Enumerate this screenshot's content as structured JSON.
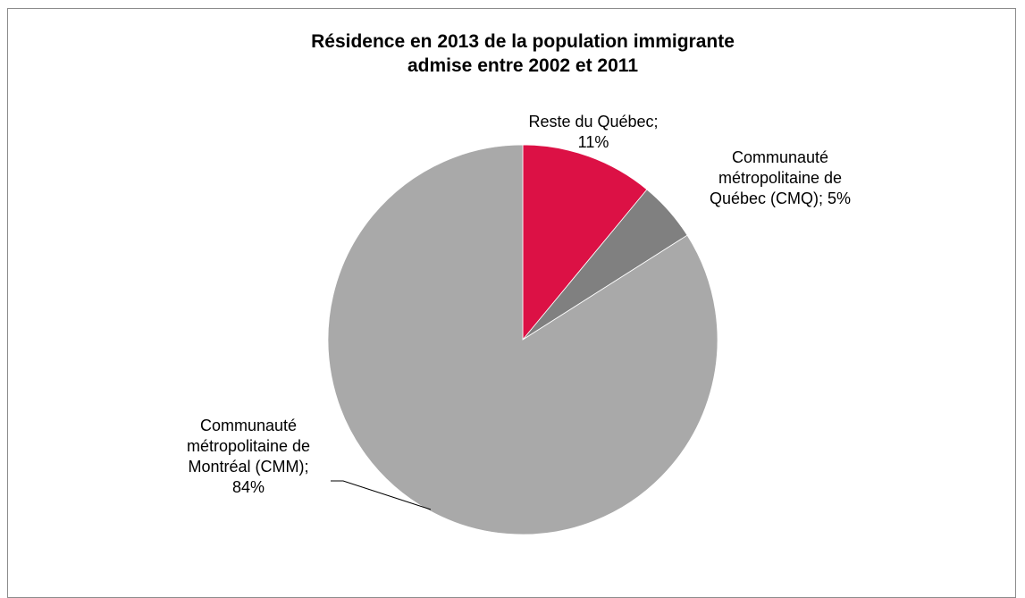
{
  "chart_data": {
    "type": "pie",
    "title": [
      "Résidence en 2013 de la population immigrante",
      "admise entre 2002 et 2011"
    ],
    "slices": [
      {
        "name": "Reste du Québec",
        "value": 11,
        "label_lines": [
          "Reste du Québec;",
          "11%"
        ],
        "color": "#dc1145"
      },
      {
        "name": "Communauté métropolitaine de Québec (CMQ)",
        "value": 5,
        "label_lines": [
          "Communauté",
          "métropolitaine de",
          "Québec (CMQ); 5%"
        ],
        "color": "#808080"
      },
      {
        "name": "Communauté métropolitaine de Montréal (CMM)",
        "value": 84,
        "label_lines": [
          "Communauté",
          "métropolitaine de",
          "Montréal (CMM);",
          "84%"
        ],
        "color": "#a9a9a9"
      }
    ],
    "start_angle": "12 o'clock",
    "direction": "clockwise",
    "legend": "none"
  }
}
